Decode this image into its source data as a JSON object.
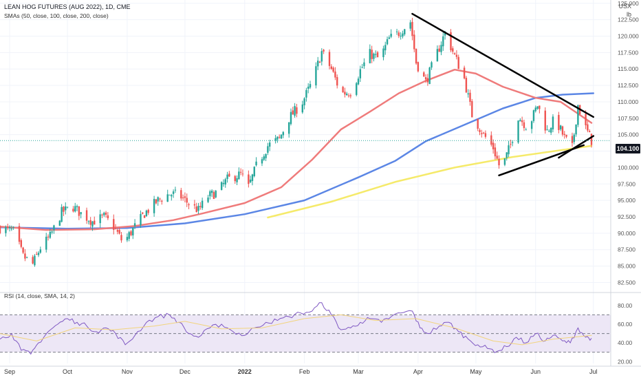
{
  "chart_data": [
    {
      "type": "candlestick",
      "title": "LEAN HOG FUTURES (AUG 2022), 1D, CME",
      "indicator_label": "SMAs (50, close, 100, close, 200, close)",
      "currency_label": "USX",
      "unit_label": "lb",
      "last_price_label": "104.100",
      "last_price": 104.1,
      "ylim": [
        81.5,
        125.5
      ],
      "y_ticks": [
        "82.500",
        "85.000",
        "87.500",
        "90.000",
        "92.500",
        "95.000",
        "97.500",
        "100.000",
        "102.500",
        "105.000",
        "107.500",
        "110.000",
        "112.500",
        "115.000",
        "117.500",
        "120.000",
        "122.500",
        "125.000"
      ],
      "x_tick_labels": [
        "Sep",
        "Oct",
        "Nov",
        "Dec",
        "2022",
        "Feb",
        "Mar",
        "Apr",
        "May",
        "Jun",
        "Jul"
      ],
      "x_tick_dates": [
        "2021-09-01",
        "2021-10-01",
        "2021-11-01",
        "2021-12-01",
        "2022-01-01",
        "2022-02-01",
        "2022-03-01",
        "2022-04-01",
        "2022-05-01",
        "2022-06-01",
        "2022-07-01"
      ],
      "price_path": [
        [
          "2021-08-27",
          90.8
        ],
        [
          "2021-09-03",
          90.3
        ],
        [
          "2021-09-08",
          86.5
        ],
        [
          "2021-09-13",
          85.3
        ],
        [
          "2021-09-17",
          87.8
        ],
        [
          "2021-09-22",
          89.5
        ],
        [
          "2021-09-28",
          93.2
        ],
        [
          "2021-10-04",
          94.0
        ],
        [
          "2021-10-08",
          93.0
        ],
        [
          "2021-10-14",
          91.8
        ],
        [
          "2021-10-20",
          92.5
        ],
        [
          "2021-10-25",
          91.0
        ],
        [
          "2021-10-30",
          88.5
        ],
        [
          "2021-11-04",
          90.6
        ],
        [
          "2021-11-10",
          93.0
        ],
        [
          "2021-11-17",
          95.0
        ],
        [
          "2021-11-23",
          96.0
        ],
        [
          "2021-11-28",
          95.8
        ],
        [
          "2021-12-03",
          94.5
        ],
        [
          "2021-12-08",
          93.5
        ],
        [
          "2021-12-13",
          95.6
        ],
        [
          "2021-12-18",
          96.3
        ],
        [
          "2021-12-23",
          98.2
        ],
        [
          "2021-12-30",
          99.0
        ],
        [
          "2022-01-03",
          97.0
        ],
        [
          "2022-01-07",
          100.2
        ],
        [
          "2022-01-13",
          103.3
        ],
        [
          "2022-01-19",
          104.4
        ],
        [
          "2022-01-24",
          107.5
        ],
        [
          "2022-01-31",
          110.0
        ],
        [
          "2022-02-05",
          113.0
        ],
        [
          "2022-02-10",
          117.6
        ],
        [
          "2022-02-15",
          115.0
        ],
        [
          "2022-02-20",
          111.3
        ],
        [
          "2022-02-25",
          111.5
        ],
        [
          "2022-03-02",
          114.8
        ],
        [
          "2022-03-07",
          117.3
        ],
        [
          "2022-03-12",
          116.5
        ],
        [
          "2022-03-17",
          119.6
        ],
        [
          "2022-03-22",
          120.5
        ],
        [
          "2022-03-28",
          122.2
        ],
        [
          "2022-03-31",
          116.0
        ],
        [
          "2022-04-05",
          113.0
        ],
        [
          "2022-04-11",
          117.5
        ],
        [
          "2022-04-15",
          120.5
        ],
        [
          "2022-04-20",
          117.0
        ],
        [
          "2022-04-25",
          113.5
        ],
        [
          "2022-04-29",
          108.0
        ],
        [
          "2022-05-05",
          105.0
        ],
        [
          "2022-05-10",
          103.0
        ],
        [
          "2022-05-14",
          99.5
        ],
        [
          "2022-05-19",
          103.5
        ],
        [
          "2022-05-23",
          107.8
        ],
        [
          "2022-05-28",
          106.0
        ],
        [
          "2022-06-02",
          109.5
        ],
        [
          "2022-06-07",
          105.5
        ],
        [
          "2022-06-11",
          107.5
        ],
        [
          "2022-06-16",
          104.5
        ],
        [
          "2022-06-20",
          103.0
        ],
        [
          "2022-06-23",
          109.5
        ],
        [
          "2022-06-27",
          106.0
        ],
        [
          "2022-06-30",
          104.1
        ]
      ],
      "sma50": [
        [
          "2021-08-27",
          91.0
        ],
        [
          "2021-09-20",
          90.5
        ],
        [
          "2021-10-15",
          90.6
        ],
        [
          "2021-11-05",
          91.1
        ],
        [
          "2021-11-25",
          92.0
        ],
        [
          "2021-12-10",
          93.0
        ],
        [
          "2022-01-01",
          94.6
        ],
        [
          "2022-01-20",
          97.0
        ],
        [
          "2022-02-05",
          101.2
        ],
        [
          "2022-02-20",
          105.8
        ],
        [
          "2022-03-07",
          108.5
        ],
        [
          "2022-03-22",
          111.3
        ],
        [
          "2022-04-05",
          113.2
        ],
        [
          "2022-04-20",
          114.9
        ],
        [
          "2022-05-01",
          114.3
        ],
        [
          "2022-05-15",
          112.3
        ],
        [
          "2022-06-01",
          110.6
        ],
        [
          "2022-06-14",
          110.0
        ],
        [
          "2022-06-30",
          106.8
        ]
      ],
      "sma100": [
        [
          "2021-08-27",
          90.9
        ],
        [
          "2021-10-01",
          90.7
        ],
        [
          "2021-11-01",
          90.8
        ],
        [
          "2021-12-01",
          91.5
        ],
        [
          "2022-01-01",
          92.9
        ],
        [
          "2022-02-01",
          95.0
        ],
        [
          "2022-03-01",
          98.5
        ],
        [
          "2022-03-20",
          101.0
        ],
        [
          "2022-04-05",
          104.0
        ],
        [
          "2022-04-25",
          106.5
        ],
        [
          "2022-05-15",
          109.0
        ],
        [
          "2022-06-01",
          110.6
        ],
        [
          "2022-06-15",
          111.1
        ],
        [
          "2022-07-01",
          111.3
        ]
      ],
      "sma200": [
        [
          "2022-01-13",
          92.4
        ],
        [
          "2022-02-15",
          94.8
        ],
        [
          "2022-03-20",
          97.8
        ],
        [
          "2022-04-20",
          100.0
        ],
        [
          "2022-05-20",
          101.6
        ],
        [
          "2022-06-30",
          103.3
        ]
      ],
      "trendlines": [
        {
          "from": [
            "2022-03-29",
            123.4
          ],
          "to": [
            "2022-07-01",
            107.7
          ]
        },
        {
          "from": [
            "2022-05-13",
            98.8
          ],
          "to": [
            "2022-06-26",
            103.4
          ]
        },
        {
          "from": [
            "2022-06-13",
            101.5
          ],
          "to": [
            "2022-07-01",
            104.8
          ]
        }
      ]
    },
    {
      "type": "line",
      "title": "RSI (14, close, SMA, 14, 2)",
      "ylim": [
        18,
        88
      ],
      "y_ticks": [
        "20.00",
        "40.00",
        "60.00",
        "80.00"
      ],
      "bands": [
        30,
        50,
        70
      ],
      "rsi": [
        [
          "2021-08-27",
          44
        ],
        [
          "2021-09-02",
          50
        ],
        [
          "2021-09-07",
          32
        ],
        [
          "2021-09-12",
          28
        ],
        [
          "2021-09-16",
          40
        ],
        [
          "2021-09-21",
          52
        ],
        [
          "2021-09-26",
          60
        ],
        [
          "2021-10-01",
          66
        ],
        [
          "2021-10-06",
          62
        ],
        [
          "2021-10-11",
          58
        ],
        [
          "2021-10-16",
          52
        ],
        [
          "2021-10-21",
          56
        ],
        [
          "2021-10-26",
          50
        ],
        [
          "2021-10-31",
          38
        ],
        [
          "2021-11-05",
          48
        ],
        [
          "2021-11-11",
          62
        ],
        [
          "2021-11-17",
          68
        ],
        [
          "2021-11-23",
          70
        ],
        [
          "2021-11-28",
          62
        ],
        [
          "2021-12-03",
          50
        ],
        [
          "2021-12-08",
          46
        ],
        [
          "2021-12-14",
          56
        ],
        [
          "2021-12-20",
          60
        ],
        [
          "2021-12-26",
          52
        ],
        [
          "2022-01-01",
          48
        ],
        [
          "2022-01-06",
          56
        ],
        [
          "2022-01-12",
          62
        ],
        [
          "2022-01-18",
          64
        ],
        [
          "2022-01-24",
          68
        ],
        [
          "2022-01-30",
          72
        ],
        [
          "2022-02-05",
          74
        ],
        [
          "2022-02-10",
          83
        ],
        [
          "2022-02-15",
          70
        ],
        [
          "2022-02-20",
          54
        ],
        [
          "2022-02-25",
          56
        ],
        [
          "2022-03-02",
          62
        ],
        [
          "2022-03-07",
          66
        ],
        [
          "2022-03-13",
          62
        ],
        [
          "2022-03-18",
          68
        ],
        [
          "2022-03-23",
          72
        ],
        [
          "2022-03-29",
          74
        ],
        [
          "2022-04-02",
          56
        ],
        [
          "2022-04-06",
          50
        ],
        [
          "2022-04-12",
          58
        ],
        [
          "2022-04-17",
          62
        ],
        [
          "2022-04-22",
          52
        ],
        [
          "2022-04-27",
          44
        ],
        [
          "2022-05-02",
          38
        ],
        [
          "2022-05-07",
          34
        ],
        [
          "2022-05-12",
          31
        ],
        [
          "2022-05-17",
          36
        ],
        [
          "2022-05-22",
          46
        ],
        [
          "2022-05-27",
          40
        ],
        [
          "2022-06-01",
          50
        ],
        [
          "2022-06-06",
          42
        ],
        [
          "2022-06-10",
          48
        ],
        [
          "2022-06-15",
          42
        ],
        [
          "2022-06-19",
          40
        ],
        [
          "2022-06-23",
          56
        ],
        [
          "2022-06-27",
          46
        ],
        [
          "2022-06-30",
          45
        ]
      ],
      "rsi_sma": [
        [
          "2021-08-27",
          50
        ],
        [
          "2021-09-15",
          42
        ],
        [
          "2021-10-05",
          56
        ],
        [
          "2021-10-25",
          54
        ],
        [
          "2021-11-15",
          58
        ],
        [
          "2021-12-01",
          63
        ],
        [
          "2021-12-20",
          55
        ],
        [
          "2022-01-10",
          56
        ],
        [
          "2022-02-01",
          66
        ],
        [
          "2022-02-20",
          70
        ],
        [
          "2022-03-10",
          64
        ],
        [
          "2022-03-31",
          66
        ],
        [
          "2022-04-20",
          56
        ],
        [
          "2022-05-10",
          42
        ],
        [
          "2022-05-25",
          38
        ],
        [
          "2022-06-10",
          44
        ],
        [
          "2022-06-30",
          48
        ]
      ]
    }
  ],
  "colors": {
    "sma50": "#ef7b7b",
    "sma100": "#5b86e5",
    "sma200": "#f5ea6a",
    "up": "#26a69a",
    "down": "#ef5350",
    "rsi": "#7e57c2",
    "rsi_sma": "#f2d47c",
    "rsi_band": "#ede7f6",
    "trendline": "#000000"
  }
}
